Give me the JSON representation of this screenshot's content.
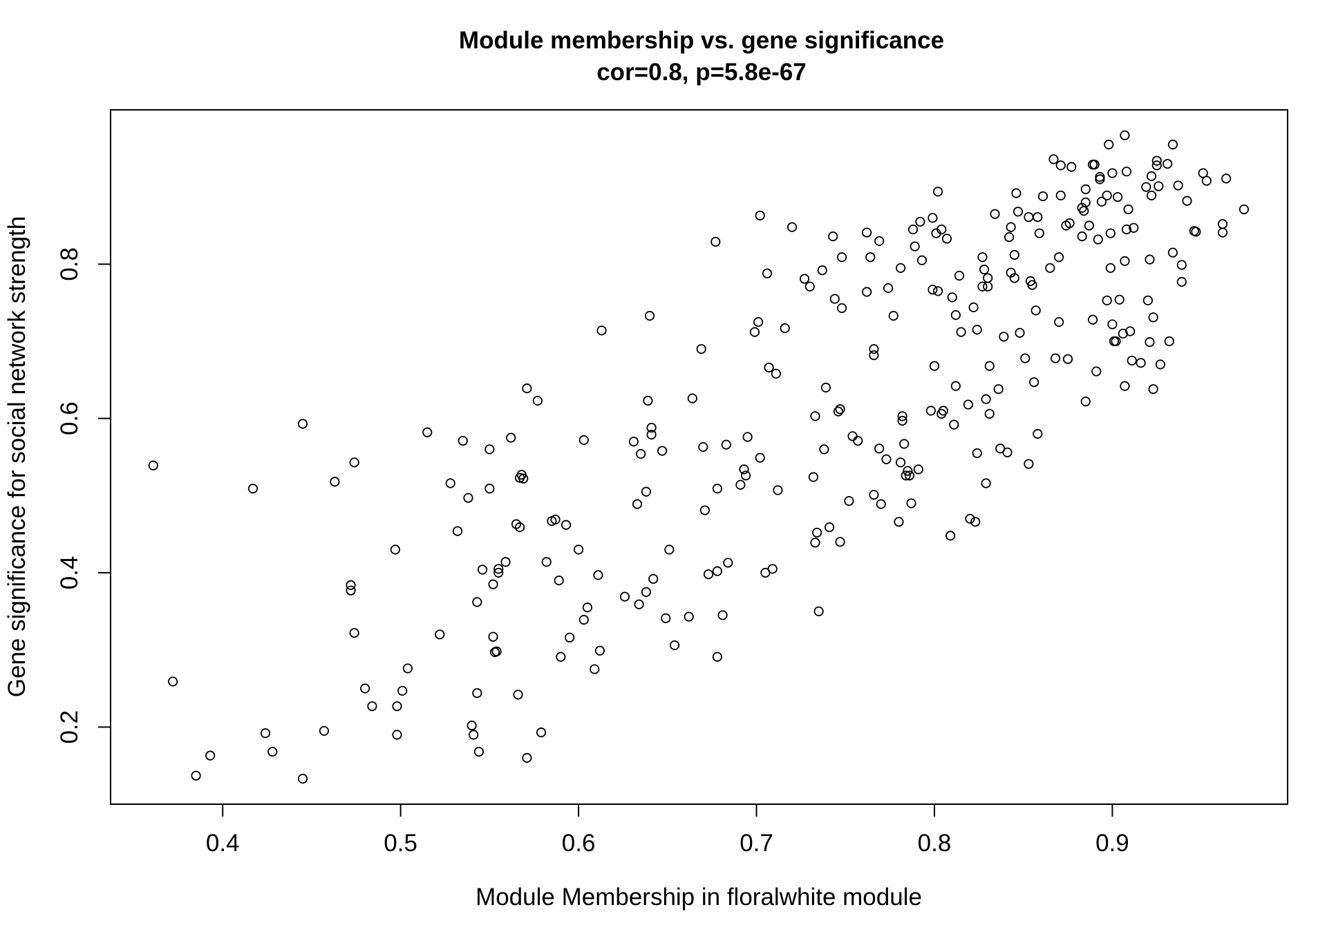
{
  "chart_data": {
    "type": "scatter",
    "title": "Module membership vs. gene significance",
    "subtitle": "cor=0.8, p=5.8e-67",
    "xlabel": "Module Membership in floralwhite module",
    "ylabel": "Gene significance for social network strength",
    "xlim": [
      0.337,
      0.9985
    ],
    "ylim": [
      0.1,
      1.0
    ],
    "xticks": [
      0.4,
      0.5,
      0.6,
      0.7,
      0.8,
      0.9
    ],
    "xtick_labels": [
      "0.4",
      "0.5",
      "0.6",
      "0.7",
      "0.8",
      "0.9"
    ],
    "yticks": [
      0.2,
      0.4,
      0.6,
      0.8
    ],
    "ytick_labels": [
      "0.2",
      "0.4",
      "0.6",
      "0.8"
    ],
    "grid": false,
    "legend": "none",
    "marker": "open-circle",
    "color": "#000000",
    "points": [
      [
        0.361,
        0.539
      ],
      [
        0.372,
        0.259
      ],
      [
        0.385,
        0.137
      ],
      [
        0.393,
        0.163
      ],
      [
        0.417,
        0.509
      ],
      [
        0.424,
        0.192
      ],
      [
        0.428,
        0.168
      ],
      [
        0.445,
        0.593
      ],
      [
        0.445,
        0.133
      ],
      [
        0.457,
        0.195
      ],
      [
        0.463,
        0.518
      ],
      [
        0.472,
        0.384
      ],
      [
        0.472,
        0.377
      ],
      [
        0.474,
        0.543
      ],
      [
        0.474,
        0.322
      ],
      [
        0.48,
        0.25
      ],
      [
        0.484,
        0.227
      ],
      [
        0.497,
        0.43
      ],
      [
        0.498,
        0.227
      ],
      [
        0.498,
        0.19
      ],
      [
        0.501,
        0.247
      ],
      [
        0.504,
        0.276
      ],
      [
        0.515,
        0.582
      ],
      [
        0.522,
        0.32
      ],
      [
        0.528,
        0.516
      ],
      [
        0.532,
        0.454
      ],
      [
        0.535,
        0.571
      ],
      [
        0.538,
        0.497
      ],
      [
        0.54,
        0.202
      ],
      [
        0.541,
        0.19
      ],
      [
        0.543,
        0.362
      ],
      [
        0.543,
        0.244
      ],
      [
        0.544,
        0.168
      ],
      [
        0.546,
        0.404
      ],
      [
        0.55,
        0.56
      ],
      [
        0.55,
        0.509
      ],
      [
        0.552,
        0.385
      ],
      [
        0.552,
        0.317
      ],
      [
        0.553,
        0.297
      ],
      [
        0.554,
        0.298
      ],
      [
        0.555,
        0.405
      ],
      [
        0.555,
        0.4
      ],
      [
        0.559,
        0.414
      ],
      [
        0.562,
        0.575
      ],
      [
        0.565,
        0.463
      ],
      [
        0.566,
        0.242
      ],
      [
        0.567,
        0.523
      ],
      [
        0.567,
        0.459
      ],
      [
        0.568,
        0.527
      ],
      [
        0.569,
        0.522
      ],
      [
        0.571,
        0.639
      ],
      [
        0.571,
        0.16
      ],
      [
        0.577,
        0.623
      ],
      [
        0.579,
        0.193
      ],
      [
        0.582,
        0.414
      ],
      [
        0.585,
        0.467
      ],
      [
        0.587,
        0.469
      ],
      [
        0.589,
        0.39
      ],
      [
        0.59,
        0.291
      ],
      [
        0.593,
        0.462
      ],
      [
        0.595,
        0.316
      ],
      [
        0.6,
        0.43
      ],
      [
        0.603,
        0.572
      ],
      [
        0.603,
        0.339
      ],
      [
        0.605,
        0.355
      ],
      [
        0.609,
        0.275
      ],
      [
        0.611,
        0.397
      ],
      [
        0.612,
        0.299
      ],
      [
        0.613,
        0.714
      ],
      [
        0.626,
        0.369
      ],
      [
        0.631,
        0.57
      ],
      [
        0.633,
        0.489
      ],
      [
        0.634,
        0.359
      ],
      [
        0.635,
        0.554
      ],
      [
        0.638,
        0.505
      ],
      [
        0.638,
        0.375
      ],
      [
        0.639,
        0.623
      ],
      [
        0.64,
        0.733
      ],
      [
        0.641,
        0.588
      ],
      [
        0.641,
        0.579
      ],
      [
        0.642,
        0.392
      ],
      [
        0.647,
        0.558
      ],
      [
        0.649,
        0.341
      ],
      [
        0.651,
        0.43
      ],
      [
        0.654,
        0.306
      ],
      [
        0.662,
        0.343
      ],
      [
        0.664,
        0.626
      ],
      [
        0.669,
        0.69
      ],
      [
        0.67,
        0.563
      ],
      [
        0.671,
        0.481
      ],
      [
        0.673,
        0.398
      ],
      [
        0.677,
        0.829
      ],
      [
        0.678,
        0.509
      ],
      [
        0.678,
        0.402
      ],
      [
        0.678,
        0.291
      ],
      [
        0.681,
        0.345
      ],
      [
        0.683,
        0.566
      ],
      [
        0.684,
        0.413
      ],
      [
        0.691,
        0.514
      ],
      [
        0.693,
        0.534
      ],
      [
        0.694,
        0.526
      ],
      [
        0.695,
        0.576
      ],
      [
        0.699,
        0.712
      ],
      [
        0.701,
        0.725
      ],
      [
        0.702,
        0.549
      ],
      [
        0.702,
        0.863
      ],
      [
        0.705,
        0.4
      ],
      [
        0.706,
        0.788
      ],
      [
        0.707,
        0.666
      ],
      [
        0.709,
        0.405
      ],
      [
        0.711,
        0.658
      ],
      [
        0.712,
        0.507
      ],
      [
        0.716,
        0.717
      ],
      [
        0.72,
        0.848
      ],
      [
        0.727,
        0.781
      ],
      [
        0.73,
        0.771
      ],
      [
        0.732,
        0.524
      ],
      [
        0.733,
        0.603
      ],
      [
        0.733,
        0.439
      ],
      [
        0.734,
        0.452
      ],
      [
        0.735,
        0.35
      ],
      [
        0.737,
        0.792
      ],
      [
        0.738,
        0.56
      ],
      [
        0.739,
        0.64
      ],
      [
        0.741,
        0.459
      ],
      [
        0.743,
        0.836
      ],
      [
        0.744,
        0.755
      ],
      [
        0.746,
        0.609
      ],
      [
        0.747,
        0.612
      ],
      [
        0.747,
        0.44
      ],
      [
        0.748,
        0.809
      ],
      [
        0.748,
        0.743
      ],
      [
        0.752,
        0.493
      ],
      [
        0.754,
        0.577
      ],
      [
        0.757,
        0.571
      ],
      [
        0.762,
        0.841
      ],
      [
        0.762,
        0.764
      ],
      [
        0.764,
        0.809
      ],
      [
        0.766,
        0.501
      ],
      [
        0.766,
        0.69
      ],
      [
        0.766,
        0.682
      ],
      [
        0.769,
        0.561
      ],
      [
        0.769,
        0.83
      ],
      [
        0.77,
        0.489
      ],
      [
        0.773,
        0.547
      ],
      [
        0.774,
        0.769
      ],
      [
        0.777,
        0.733
      ],
      [
        0.78,
        0.466
      ],
      [
        0.781,
        0.543
      ],
      [
        0.781,
        0.795
      ],
      [
        0.782,
        0.603
      ],
      [
        0.782,
        0.597
      ],
      [
        0.783,
        0.567
      ],
      [
        0.784,
        0.526
      ],
      [
        0.785,
        0.532
      ],
      [
        0.786,
        0.526
      ],
      [
        0.787,
        0.49
      ],
      [
        0.788,
        0.845
      ],
      [
        0.789,
        0.823
      ],
      [
        0.791,
        0.534
      ],
      [
        0.792,
        0.855
      ],
      [
        0.793,
        0.805
      ],
      [
        0.798,
        0.61
      ],
      [
        0.799,
        0.767
      ],
      [
        0.799,
        0.86
      ],
      [
        0.8,
        0.668
      ],
      [
        0.801,
        0.84
      ],
      [
        0.802,
        0.765
      ],
      [
        0.802,
        0.894
      ],
      [
        0.804,
        0.845
      ],
      [
        0.804,
        0.606
      ],
      [
        0.805,
        0.61
      ],
      [
        0.807,
        0.833
      ],
      [
        0.809,
        0.448
      ],
      [
        0.81,
        0.757
      ],
      [
        0.811,
        0.592
      ],
      [
        0.812,
        0.642
      ],
      [
        0.812,
        0.734
      ],
      [
        0.814,
        0.785
      ],
      [
        0.815,
        0.712
      ],
      [
        0.819,
        0.618
      ],
      [
        0.82,
        0.47
      ],
      [
        0.822,
        0.744
      ],
      [
        0.823,
        0.466
      ],
      [
        0.824,
        0.555
      ],
      [
        0.824,
        0.715
      ],
      [
        0.827,
        0.809
      ],
      [
        0.827,
        0.771
      ],
      [
        0.828,
        0.793
      ],
      [
        0.829,
        0.625
      ],
      [
        0.829,
        0.516
      ],
      [
        0.83,
        0.782
      ],
      [
        0.83,
        0.771
      ],
      [
        0.831,
        0.668
      ],
      [
        0.831,
        0.606
      ],
      [
        0.834,
        0.865
      ],
      [
        0.836,
        0.638
      ],
      [
        0.837,
        0.561
      ],
      [
        0.839,
        0.706
      ],
      [
        0.841,
        0.556
      ],
      [
        0.842,
        0.835
      ],
      [
        0.843,
        0.848
      ],
      [
        0.843,
        0.789
      ],
      [
        0.845,
        0.812
      ],
      [
        0.845,
        0.782
      ],
      [
        0.846,
        0.892
      ],
      [
        0.847,
        0.868
      ],
      [
        0.848,
        0.711
      ],
      [
        0.851,
        0.678
      ],
      [
        0.853,
        0.541
      ],
      [
        0.853,
        0.861
      ],
      [
        0.854,
        0.778
      ],
      [
        0.855,
        0.773
      ],
      [
        0.856,
        0.647
      ],
      [
        0.857,
        0.74
      ],
      [
        0.858,
        0.58
      ],
      [
        0.858,
        0.861
      ],
      [
        0.859,
        0.84
      ],
      [
        0.861,
        0.888
      ],
      [
        0.865,
        0.795
      ],
      [
        0.867,
        0.936
      ],
      [
        0.868,
        0.678
      ],
      [
        0.87,
        0.725
      ],
      [
        0.87,
        0.809
      ],
      [
        0.871,
        0.928
      ],
      [
        0.871,
        0.889
      ],
      [
        0.874,
        0.85
      ],
      [
        0.875,
        0.677
      ],
      [
        0.876,
        0.853
      ],
      [
        0.877,
        0.926
      ],
      [
        0.883,
        0.836
      ],
      [
        0.883,
        0.873
      ],
      [
        0.884,
        0.869
      ],
      [
        0.885,
        0.88
      ],
      [
        0.885,
        0.622
      ],
      [
        0.885,
        0.897
      ],
      [
        0.887,
        0.85
      ],
      [
        0.889,
        0.728
      ],
      [
        0.889,
        0.929
      ],
      [
        0.89,
        0.929
      ],
      [
        0.891,
        0.661
      ],
      [
        0.892,
        0.832
      ],
      [
        0.893,
        0.913
      ],
      [
        0.893,
        0.91
      ],
      [
        0.894,
        0.881
      ],
      [
        0.897,
        0.889
      ],
      [
        0.897,
        0.753
      ],
      [
        0.898,
        0.955
      ],
      [
        0.899,
        0.84
      ],
      [
        0.899,
        0.795
      ],
      [
        0.9,
        0.918
      ],
      [
        0.9,
        0.722
      ],
      [
        0.901,
        0.7
      ],
      [
        0.902,
        0.7
      ],
      [
        0.903,
        0.887
      ],
      [
        0.904,
        0.754
      ],
      [
        0.906,
        0.71
      ],
      [
        0.907,
        0.967
      ],
      [
        0.907,
        0.804
      ],
      [
        0.907,
        0.642
      ],
      [
        0.908,
        0.845
      ],
      [
        0.908,
        0.92
      ],
      [
        0.909,
        0.871
      ],
      [
        0.91,
        0.713
      ],
      [
        0.911,
        0.675
      ],
      [
        0.912,
        0.847
      ],
      [
        0.916,
        0.672
      ],
      [
        0.919,
        0.9
      ],
      [
        0.92,
        0.753
      ],
      [
        0.921,
        0.699
      ],
      [
        0.921,
        0.806
      ],
      [
        0.922,
        0.914
      ],
      [
        0.922,
        0.889
      ],
      [
        0.923,
        0.638
      ],
      [
        0.923,
        0.731
      ],
      [
        0.925,
        0.928
      ],
      [
        0.925,
        0.934
      ],
      [
        0.926,
        0.901
      ],
      [
        0.927,
        0.67
      ],
      [
        0.931,
        0.93
      ],
      [
        0.932,
        0.7
      ],
      [
        0.934,
        0.955
      ],
      [
        0.934,
        0.815
      ],
      [
        0.937,
        0.902
      ],
      [
        0.939,
        0.799
      ],
      [
        0.939,
        0.777
      ],
      [
        0.942,
        0.882
      ],
      [
        0.946,
        0.843
      ],
      [
        0.947,
        0.842
      ],
      [
        0.951,
        0.918
      ],
      [
        0.953,
        0.908
      ],
      [
        0.962,
        0.852
      ],
      [
        0.962,
        0.841
      ],
      [
        0.964,
        0.911
      ],
      [
        0.974,
        0.871
      ]
    ]
  }
}
